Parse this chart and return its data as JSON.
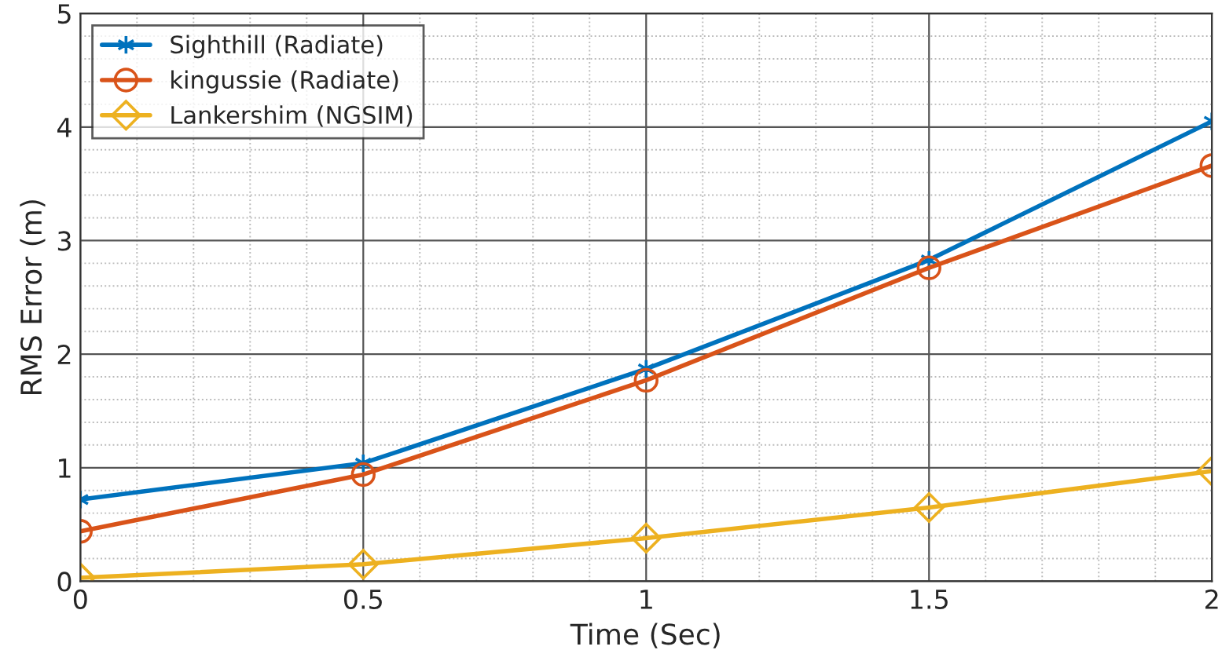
{
  "chart_data": {
    "type": "line",
    "xlabel": "Time (Sec)",
    "ylabel": "RMS Error (m)",
    "x": [
      0,
      0.5,
      1,
      1.5,
      2
    ],
    "series": [
      {
        "name": "Sighthill (Radiate)",
        "color": "#0072bd",
        "marker": "cross",
        "values": [
          0.72,
          1.04,
          1.87,
          2.83,
          4.05
        ]
      },
      {
        "name": "kingussie (Radiate)",
        "color": "#d95319",
        "marker": "circle",
        "values": [
          0.44,
          0.94,
          1.77,
          2.76,
          3.66
        ]
      },
      {
        "name": "Lankershim (NGSIM)",
        "color": "#edb120",
        "marker": "diamond",
        "values": [
          0.03,
          0.15,
          0.38,
          0.65,
          0.97
        ]
      }
    ],
    "xlim": [
      0,
      2
    ],
    "ylim": [
      0,
      5
    ],
    "xticks": [
      0,
      0.5,
      1,
      1.5,
      2
    ],
    "yticks": [
      0,
      1,
      2,
      3,
      4,
      5
    ],
    "grid": true,
    "legend": "top left",
    "line_style": "solid"
  }
}
